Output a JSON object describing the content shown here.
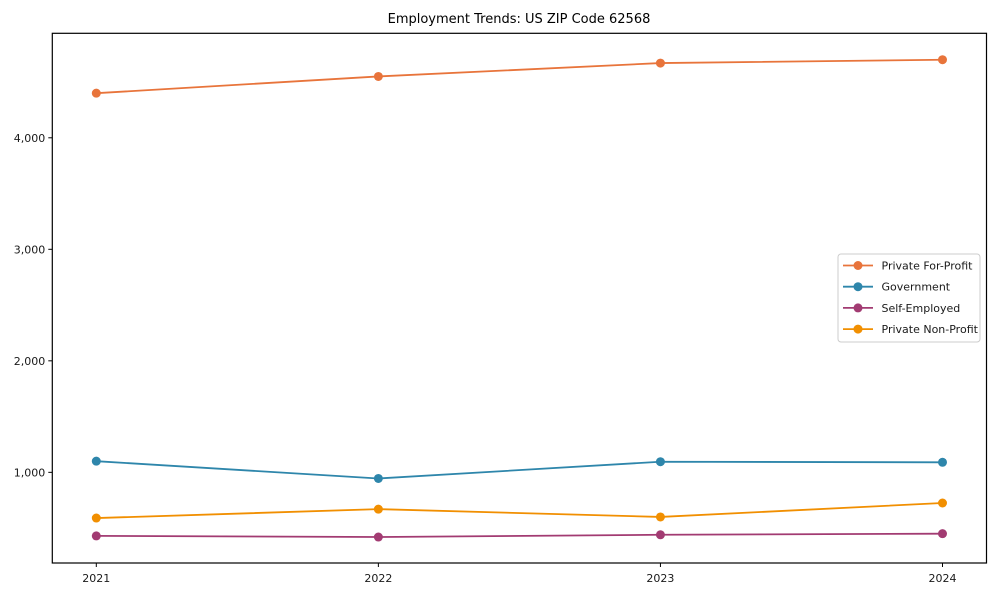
{
  "chart_data": {
    "type": "line",
    "title": "Employment Trends: US ZIP Code 62568",
    "categories": [
      "2021",
      "2022",
      "2023",
      "2024"
    ],
    "series": [
      {
        "name": "Private For-Profit",
        "color": "#E8743B",
        "values": [
          4400,
          4550,
          4670,
          4700
        ]
      },
      {
        "name": "Government",
        "color": "#2E86AB",
        "values": [
          1100,
          945,
          1095,
          1090
        ]
      },
      {
        "name": "Self-Employed",
        "color": "#A23B72",
        "values": [
          430,
          420,
          440,
          450
        ]
      },
      {
        "name": "Private Non-Profit",
        "color": "#F18F01",
        "values": [
          590,
          670,
          600,
          725
        ]
      }
    ],
    "yticks": [
      {
        "value": 1000,
        "label": "1,000"
      },
      {
        "value": 2000,
        "label": "2,000"
      },
      {
        "value": 3000,
        "label": "3,000"
      },
      {
        "value": 4000,
        "label": "4,000"
      }
    ],
    "ylim": [
      187,
      4937
    ],
    "xlabel": "",
    "ylabel": "",
    "grid": false,
    "legend_position": "center right",
    "marker": "circle",
    "axis_color": "#000000",
    "text_color": "#1a1a1a",
    "legend_border_color": "#cccccc",
    "background": "#ffffff"
  }
}
